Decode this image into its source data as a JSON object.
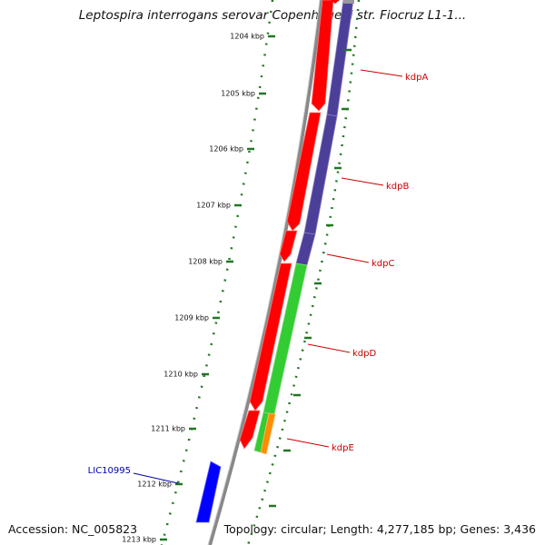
{
  "title": "Leptospira interrogans serovar Copenhageni str. Fiocruz L1-1...",
  "footer": {
    "accession": "Accession: NC_005823",
    "summary": "Topology: circular; Length: 4,277,185 bp; Genes: 3,436"
  },
  "ruler": {
    "ticks": [
      "1204 kbp",
      "1205 kbp",
      "1206 kbp",
      "1207 kbp",
      "1208 kbp",
      "1209 kbp",
      "1210 kbp",
      "1211 kbp",
      "1212 kbp",
      "1213 kbp"
    ]
  },
  "genes": [
    {
      "name": "kdpA",
      "color": "#cc0000"
    },
    {
      "name": "kdpB",
      "color": "#cc0000"
    },
    {
      "name": "kdpC",
      "color": "#cc0000"
    },
    {
      "name": "kdpD",
      "color": "#cc0000"
    },
    {
      "name": "kdpE",
      "color": "#cc0000"
    },
    {
      "name": "LIC10995",
      "color": "#0000aa"
    }
  ],
  "colors": {
    "forward_cds": "#ff0000",
    "reverse_cds": "#0000ff",
    "cog_purple": "#4b3f9a",
    "cog_green": "#33cc33",
    "cog_orange": "#ff8c00",
    "backbone": "#888888",
    "ticks": "#227722"
  }
}
